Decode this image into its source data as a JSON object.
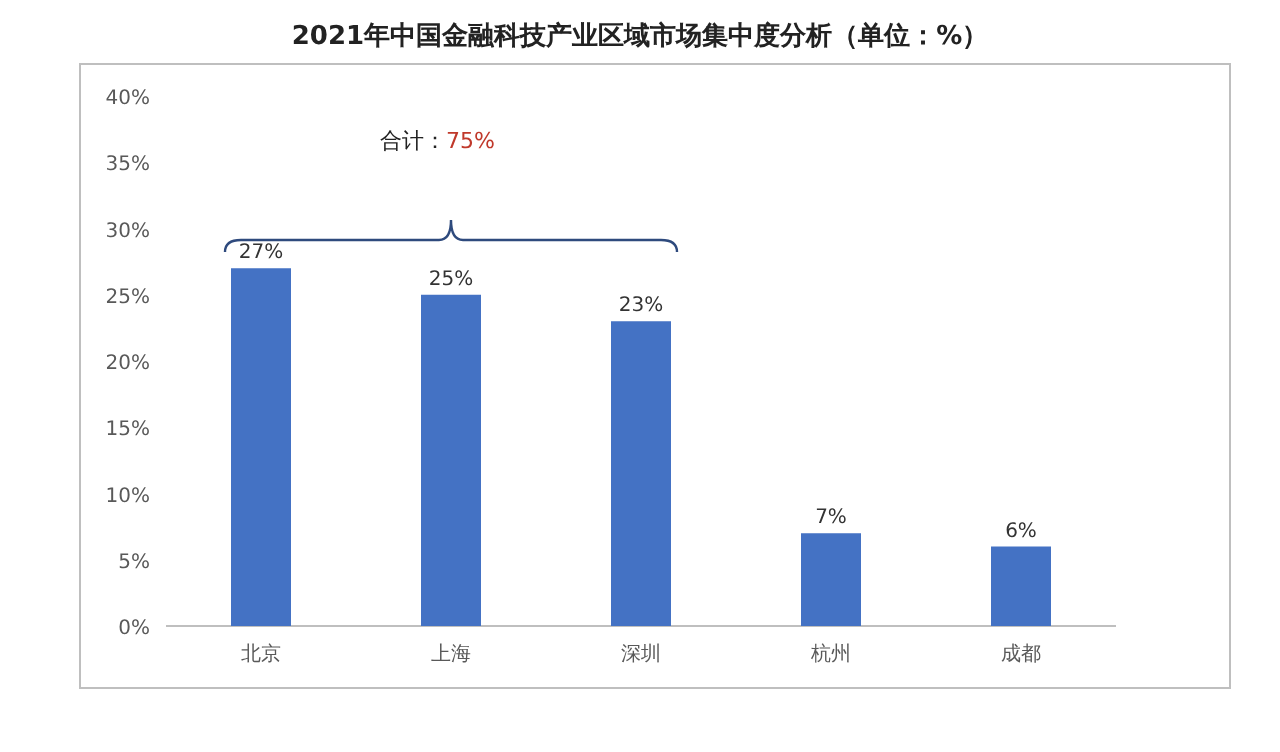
{
  "chart_data": {
    "type": "bar",
    "title": "2021年中国金融科技产业区域市场集中度分析（单位：%）",
    "categories": [
      "北京",
      "上海",
      "深圳",
      "杭州",
      "成都"
    ],
    "values": [
      27,
      25,
      23,
      7,
      6
    ],
    "value_labels": [
      "27%",
      "25%",
      "23%",
      "7%",
      "6%"
    ],
    "color": "#4472c4",
    "ylim": [
      0,
      40
    ],
    "yticks": [
      {
        "value": 0,
        "label": "0%"
      },
      {
        "value": 5,
        "label": "5%"
      },
      {
        "value": 10,
        "label": "10%"
      },
      {
        "value": 15,
        "label": "15%"
      },
      {
        "value": 20,
        "label": "20%"
      },
      {
        "value": 25,
        "label": "25%"
      },
      {
        "value": 30,
        "label": "30%"
      },
      {
        "value": 35,
        "label": "35%"
      },
      {
        "value": 40,
        "label": "40%"
      }
    ],
    "annotations": [
      "合计：75%"
    ]
  }
}
